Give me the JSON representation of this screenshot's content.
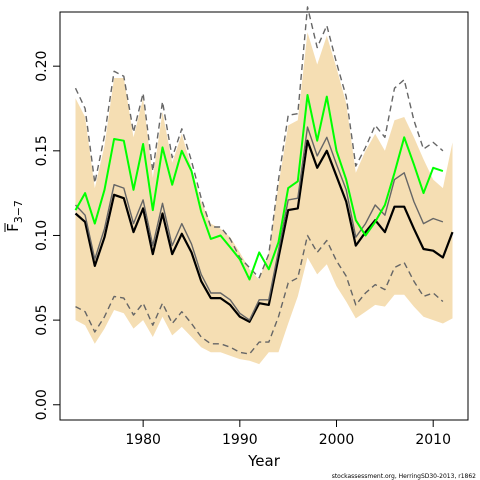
{
  "chart_data": {
    "type": "line",
    "xlabel": "Year",
    "ylabel_main": "F",
    "ylabel_sub": "3−7",
    "xlim": [
      1971.4,
      2013.6
    ],
    "ylim": [
      -0.009,
      0.232
    ],
    "x_ticks": [
      1980,
      1990,
      2000,
      2010
    ],
    "x_tick_labels": [
      "1980",
      "1990",
      "2000",
      "2010"
    ],
    "y_ticks": [
      0.0,
      0.05,
      0.1,
      0.15,
      0.2
    ],
    "y_tick_labels": [
      "0.00",
      "0.05",
      "0.10",
      "0.15",
      "0.20"
    ],
    "grid": false,
    "x": [
      1973,
      1974,
      1975,
      1976,
      1977,
      1978,
      1979,
      1980,
      1981,
      1982,
      1983,
      1984,
      1985,
      1986,
      1987,
      1988,
      1989,
      1990,
      1991,
      1992,
      1993,
      1994,
      1995,
      1996,
      1997,
      1998,
      1999,
      2000,
      2001,
      2002,
      2003,
      2004,
      2005,
      2006,
      2007,
      2008,
      2009,
      2010,
      2011,
      2012
    ],
    "band_upper": [
      0.181,
      0.17,
      0.128,
      0.153,
      0.193,
      0.193,
      0.158,
      0.181,
      0.134,
      0.173,
      0.143,
      0.16,
      0.14,
      0.12,
      0.107,
      0.104,
      0.099,
      0.09,
      0.08,
      0.074,
      0.09,
      0.13,
      0.165,
      0.168,
      0.22,
      0.201,
      0.218,
      0.199,
      0.178,
      0.137,
      0.15,
      0.16,
      0.15,
      0.168,
      0.17,
      0.158,
      0.145,
      0.133,
      0.128,
      0.155
    ],
    "band_lower": [
      0.05,
      0.047,
      0.036,
      0.045,
      0.056,
      0.054,
      0.045,
      0.05,
      0.04,
      0.052,
      0.041,
      0.046,
      0.04,
      0.034,
      0.031,
      0.031,
      0.029,
      0.027,
      0.026,
      0.024,
      0.031,
      0.031,
      0.048,
      0.064,
      0.087,
      0.077,
      0.083,
      0.07,
      0.061,
      0.051,
      0.055,
      0.059,
      0.058,
      0.065,
      0.065,
      0.058,
      0.052,
      0.05,
      0.048,
      0.051
    ],
    "series": [
      {
        "key": "estimate",
        "color": "#000000",
        "style": "solid",
        "width": 2.2,
        "values": [
          0.113,
          0.108,
          0.082,
          0.099,
          0.124,
          0.122,
          0.102,
          0.116,
          0.089,
          0.113,
          0.089,
          0.101,
          0.09,
          0.073,
          0.063,
          0.063,
          0.059,
          0.052,
          0.049,
          0.06,
          0.059,
          0.087,
          0.115,
          0.116,
          0.156,
          0.14,
          0.15,
          0.135,
          0.12,
          0.094,
          0.102,
          0.109,
          0.102,
          0.117,
          0.117,
          0.104,
          0.092,
          0.091,
          0.087,
          0.102
        ]
      },
      {
        "key": "median",
        "color": "#666666",
        "style": "solid",
        "width": 1.4,
        "values": [
          0.118,
          0.112,
          0.086,
          0.104,
          0.13,
          0.128,
          0.107,
          0.121,
          0.094,
          0.119,
          0.094,
          0.107,
          0.095,
          0.077,
          0.066,
          0.066,
          0.062,
          0.054,
          0.05,
          0.062,
          0.062,
          0.091,
          0.121,
          0.122,
          0.164,
          0.147,
          0.158,
          0.142,
          0.127,
          0.099,
          0.107,
          0.118,
          0.112,
          0.133,
          0.137,
          0.12,
          0.107,
          0.11,
          0.108,
          null
        ]
      },
      {
        "key": "upper_ci",
        "color": "#666666",
        "style": "dashed",
        "width": 1.4,
        "values": [
          0.187,
          0.175,
          0.131,
          0.159,
          0.197,
          0.194,
          0.161,
          0.184,
          0.138,
          0.179,
          0.146,
          0.163,
          0.144,
          0.122,
          0.105,
          0.105,
          0.098,
          0.087,
          0.081,
          0.075,
          0.089,
          0.133,
          0.171,
          0.172,
          0.235,
          0.211,
          0.224,
          0.202,
          0.182,
          0.141,
          0.152,
          0.165,
          0.158,
          0.187,
          0.192,
          0.168,
          0.151,
          0.155,
          0.15,
          null
        ]
      },
      {
        "key": "lower_ci",
        "color": "#666666",
        "style": "dashed",
        "width": 1.4,
        "values": [
          0.058,
          0.055,
          0.043,
          0.052,
          0.064,
          0.063,
          0.053,
          0.06,
          0.047,
          0.06,
          0.048,
          0.055,
          0.048,
          0.04,
          0.036,
          0.036,
          0.034,
          0.031,
          0.03,
          0.037,
          0.037,
          0.052,
          0.072,
          0.075,
          0.1,
          0.09,
          0.097,
          0.085,
          0.076,
          0.059,
          0.066,
          0.071,
          0.068,
          0.081,
          0.084,
          0.073,
          0.064,
          0.066,
          0.061,
          null
        ]
      },
      {
        "key": "previous",
        "color": "#00ff00",
        "style": "solid",
        "width": 2.0,
        "values": [
          0.115,
          0.125,
          0.107,
          0.127,
          0.157,
          0.156,
          0.127,
          0.154,
          0.115,
          0.152,
          0.13,
          0.15,
          0.138,
          0.114,
          0.098,
          0.1,
          0.093,
          0.086,
          0.074,
          0.09,
          0.08,
          0.096,
          0.128,
          0.132,
          0.183,
          0.156,
          0.182,
          0.15,
          0.133,
          0.109,
          0.1,
          0.108,
          0.118,
          0.137,
          0.158,
          0.142,
          0.125,
          0.14,
          0.138,
          null
        ]
      }
    ],
    "colors": {
      "band": "#f5deb3",
      "frame": "#000000"
    },
    "credit": "stockassessment.org, HerringSD30-2013, r1862"
  }
}
